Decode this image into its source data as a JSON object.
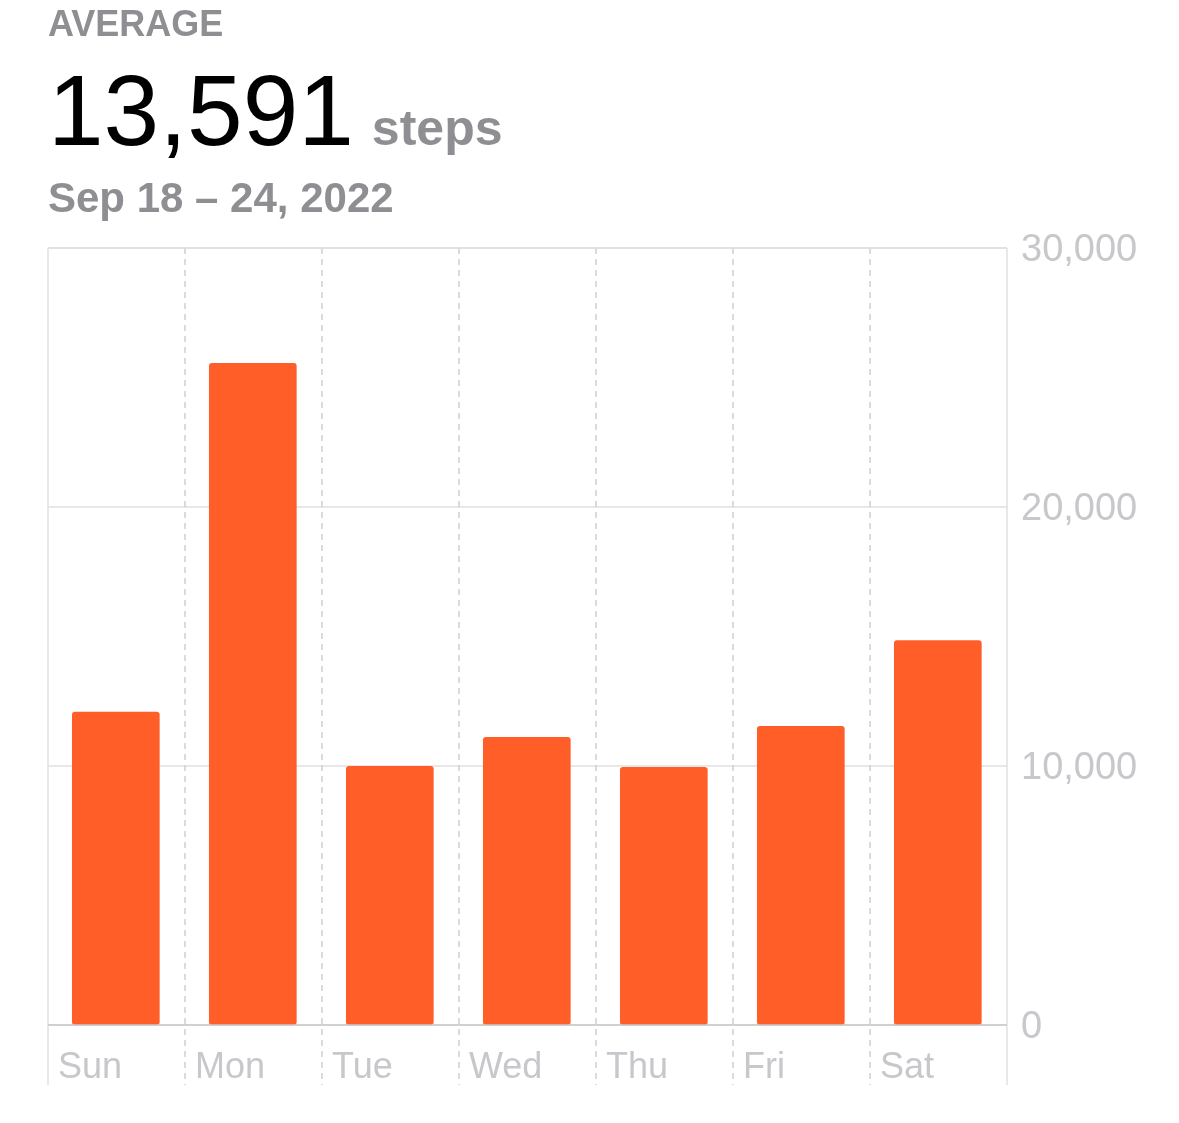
{
  "chart_data": {
    "type": "bar",
    "title": "AVERAGE",
    "subtitle": "Sep 18 – 24, 2022",
    "annotations": [
      "13,591",
      "steps"
    ],
    "categories": [
      "Sun",
      "Mon",
      "Tue",
      "Wed",
      "Thu",
      "Fri",
      "Sat"
    ],
    "values": [
      12090,
      25560,
      10000,
      11120,
      9960,
      11540,
      14860
    ],
    "color": "#ff5e28",
    "ylim": [
      0,
      30000
    ],
    "yticks": [
      0,
      {
        "value": 10000,
        "label": "10,000"
      },
      {
        "value": 20000,
        "label": "20,000"
      },
      {
        "value": 30000,
        "label": "30,000"
      }
    ],
    "grid": true
  }
}
